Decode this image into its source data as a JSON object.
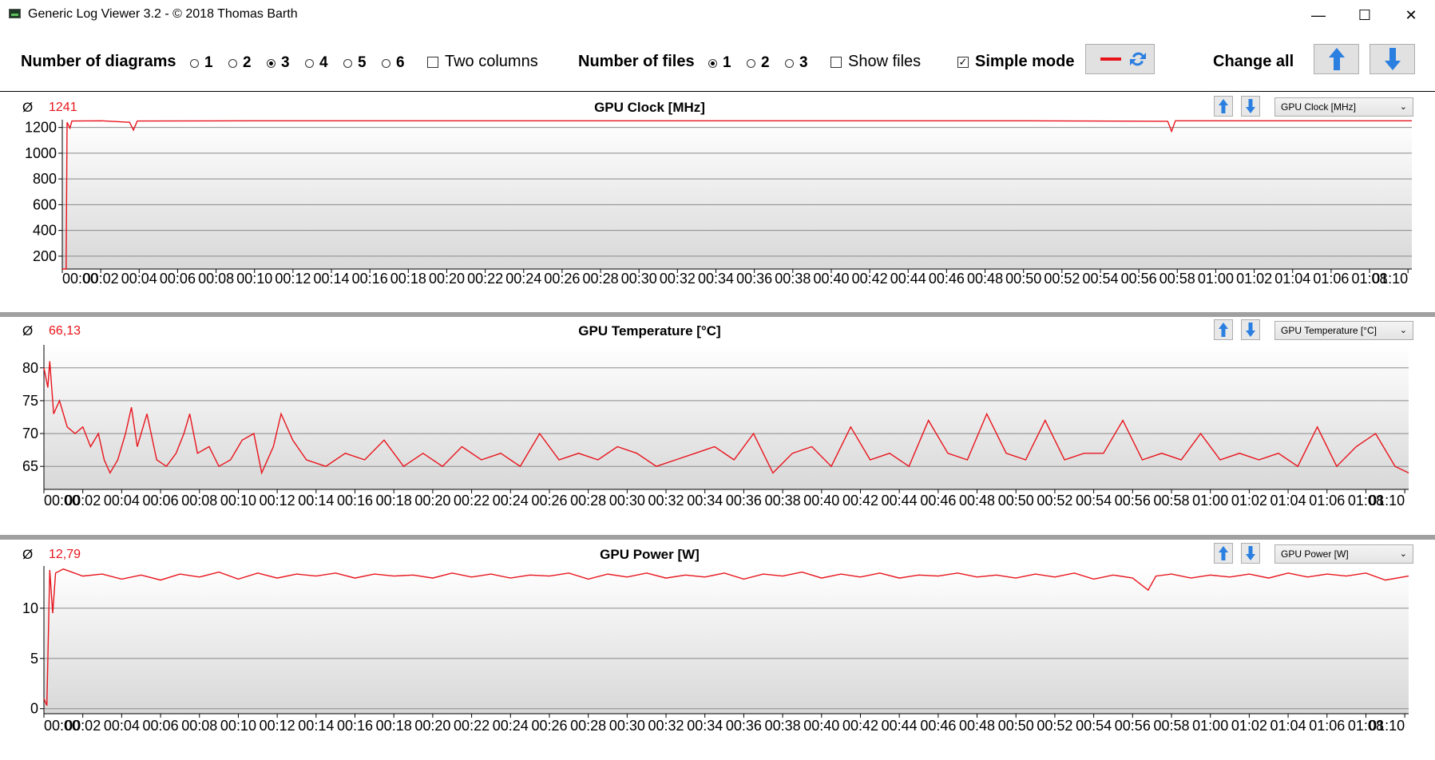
{
  "window": {
    "title": "Generic Log Viewer 3.2 - © 2018 Thomas Barth",
    "minimize": "—",
    "maximize": "☐",
    "close": "✕"
  },
  "toolbar": {
    "diagrams_label": "Number of diagrams",
    "diagram_options": [
      "1",
      "2",
      "3",
      "4",
      "5",
      "6"
    ],
    "diagrams_selected": "3",
    "two_columns_label": "Two columns",
    "two_columns_checked": false,
    "files_label": "Number of files",
    "file_options": [
      "1",
      "2",
      "3"
    ],
    "files_selected": "1",
    "show_files_label": "Show files",
    "show_files_checked": false,
    "simple_mode_label": "Simple mode",
    "simple_mode_checked": true,
    "change_all_label": "Change all"
  },
  "colors": {
    "series": "#e8141c",
    "accent_blue": "#2a7fe0"
  },
  "panels": [
    {
      "avg_symbol": "Ø",
      "avg_value": "1241",
      "title": "GPU Clock [MHz]",
      "dropdown": "GPU Clock [MHz]"
    },
    {
      "avg_symbol": "Ø",
      "avg_value": "66,13",
      "title": "GPU Temperature [°C]",
      "dropdown": "GPU Temperature [°C]"
    },
    {
      "avg_symbol": "Ø",
      "avg_value": "12,79",
      "title": "GPU Power [W]",
      "dropdown": "GPU Power [W]"
    }
  ],
  "chart_data": [
    {
      "type": "line",
      "title": "GPU Clock [MHz]",
      "x_ticks": [
        "00:00",
        "00:02",
        "00:04",
        "00:06",
        "00:08",
        "00:10",
        "00:12",
        "00:14",
        "00:16",
        "00:18",
        "00:20",
        "00:22",
        "00:24",
        "00:26",
        "00:28",
        "00:30",
        "00:32",
        "00:34",
        "00:36",
        "00:38",
        "00:40",
        "00:42",
        "00:44",
        "00:46",
        "00:48",
        "00:50",
        "00:52",
        "00:54",
        "00:56",
        "00:58",
        "01:00",
        "01:02",
        "01:04",
        "01:06",
        "01:08",
        "01:10"
      ],
      "y_ticks": [
        200,
        400,
        600,
        800,
        1000,
        1200
      ],
      "ylim": [
        100,
        1260
      ],
      "xlim_minutes": [
        0,
        70.2
      ],
      "grid": true,
      "series": [
        {
          "points": [
            [
              0,
              100
            ],
            [
              0.2,
              100
            ],
            [
              0.25,
              1240
            ],
            [
              0.4,
              1195
            ],
            [
              0.5,
              1250
            ],
            [
              2,
              1252
            ],
            [
              3.5,
              1240
            ],
            [
              3.7,
              1180
            ],
            [
              3.9,
              1250
            ],
            [
              10,
              1252
            ],
            [
              20,
              1252
            ],
            [
              30,
              1252
            ],
            [
              40,
              1252
            ],
            [
              50,
              1252
            ],
            [
              57.5,
              1248
            ],
            [
              57.7,
              1170
            ],
            [
              57.9,
              1252
            ],
            [
              70.2,
              1252
            ]
          ]
        }
      ]
    },
    {
      "type": "line",
      "title": "GPU Temperature [°C]",
      "x_ticks": [
        "00:00",
        "00:02",
        "00:04",
        "00:06",
        "00:08",
        "00:10",
        "00:12",
        "00:14",
        "00:16",
        "00:18",
        "00:20",
        "00:22",
        "00:24",
        "00:26",
        "00:28",
        "00:30",
        "00:32",
        "00:34",
        "00:36",
        "00:38",
        "00:40",
        "00:42",
        "00:44",
        "00:46",
        "00:48",
        "00:50",
        "00:52",
        "00:54",
        "00:56",
        "00:58",
        "01:00",
        "01:02",
        "01:04",
        "01:06",
        "01:08",
        "01:10"
      ],
      "y_ticks": [
        65,
        70,
        75,
        80
      ],
      "ylim": [
        61.5,
        83.5
      ],
      "xlim_minutes": [
        0,
        70.2
      ],
      "grid": true,
      "series": [
        {
          "points": [
            [
              0,
              80
            ],
            [
              0.2,
              77
            ],
            [
              0.3,
              81
            ],
            [
              0.5,
              73
            ],
            [
              0.8,
              75
            ],
            [
              1.2,
              71
            ],
            [
              1.6,
              70
            ],
            [
              2,
              71
            ],
            [
              2.4,
              68
            ],
            [
              2.8,
              70
            ],
            [
              3.1,
              66
            ],
            [
              3.4,
              64
            ],
            [
              3.8,
              66
            ],
            [
              4.2,
              70
            ],
            [
              4.5,
              74
            ],
            [
              4.8,
              68
            ],
            [
              5.3,
              73
            ],
            [
              5.8,
              66
            ],
            [
              6.3,
              65
            ],
            [
              6.8,
              67
            ],
            [
              7.2,
              70
            ],
            [
              7.5,
              73
            ],
            [
              7.9,
              67
            ],
            [
              8.5,
              68
            ],
            [
              9,
              65
            ],
            [
              9.6,
              66
            ],
            [
              10.2,
              69
            ],
            [
              10.8,
              70
            ],
            [
              11.2,
              64
            ],
            [
              11.8,
              68
            ],
            [
              12.2,
              73
            ],
            [
              12.8,
              69
            ],
            [
              13.5,
              66
            ],
            [
              14.5,
              65
            ],
            [
              15.5,
              67
            ],
            [
              16.5,
              66
            ],
            [
              17.5,
              69
            ],
            [
              18.5,
              65
            ],
            [
              19.5,
              67
            ],
            [
              20.5,
              65
            ],
            [
              21.5,
              68
            ],
            [
              22.5,
              66
            ],
            [
              23.5,
              67
            ],
            [
              24.5,
              65
            ],
            [
              25.5,
              70
            ],
            [
              26.5,
              66
            ],
            [
              27.5,
              67
            ],
            [
              28.5,
              66
            ],
            [
              29.5,
              68
            ],
            [
              30.5,
              67
            ],
            [
              31.5,
              65
            ],
            [
              32.5,
              66
            ],
            [
              33.5,
              67
            ],
            [
              34.5,
              68
            ],
            [
              35.5,
              66
            ],
            [
              36.5,
              70
            ],
            [
              37.5,
              64
            ],
            [
              38.5,
              67
            ],
            [
              39.5,
              68
            ],
            [
              40.5,
              65
            ],
            [
              41.5,
              71
            ],
            [
              42.5,
              66
            ],
            [
              43.5,
              67
            ],
            [
              44.5,
              65
            ],
            [
              45.5,
              72
            ],
            [
              46.5,
              67
            ],
            [
              47.5,
              66
            ],
            [
              48.5,
              73
            ],
            [
              49.5,
              67
            ],
            [
              50.5,
              66
            ],
            [
              51.5,
              72
            ],
            [
              52.5,
              66
            ],
            [
              53.5,
              67
            ],
            [
              54.5,
              67
            ],
            [
              55.5,
              72
            ],
            [
              56.5,
              66
            ],
            [
              57.5,
              67
            ],
            [
              58.5,
              66
            ],
            [
              59.5,
              70
            ],
            [
              60.5,
              66
            ],
            [
              61.5,
              67
            ],
            [
              62.5,
              66
            ],
            [
              63.5,
              67
            ],
            [
              64.5,
              65
            ],
            [
              65.5,
              71
            ],
            [
              66.5,
              65
            ],
            [
              67.5,
              68
            ],
            [
              68.5,
              70
            ],
            [
              69.5,
              65
            ],
            [
              70.2,
              64
            ]
          ]
        }
      ]
    },
    {
      "type": "line",
      "title": "GPU Power [W]",
      "x_ticks": [
        "00:00",
        "00:02",
        "00:04",
        "00:06",
        "00:08",
        "00:10",
        "00:12",
        "00:14",
        "00:16",
        "00:18",
        "00:20",
        "00:22",
        "00:24",
        "00:26",
        "00:28",
        "00:30",
        "00:32",
        "00:34",
        "00:36",
        "00:38",
        "00:40",
        "00:42",
        "00:44",
        "00:46",
        "00:48",
        "00:50",
        "00:52",
        "00:54",
        "00:56",
        "00:58",
        "01:00",
        "01:02",
        "01:04",
        "01:06",
        "01:08",
        "01:10"
      ],
      "y_ticks": [
        0,
        5,
        10
      ],
      "ylim": [
        -0.5,
        14.2
      ],
      "xlim_minutes": [
        0,
        70.2
      ],
      "grid": true,
      "series": [
        {
          "points": [
            [
              0,
              1
            ],
            [
              0.15,
              0.3
            ],
            [
              0.3,
              13.8
            ],
            [
              0.45,
              9.5
            ],
            [
              0.6,
              13.5
            ],
            [
              1,
              13.9
            ],
            [
              2,
              13.2
            ],
            [
              3,
              13.4
            ],
            [
              4,
              12.9
            ],
            [
              5,
              13.3
            ],
            [
              6,
              12.8
            ],
            [
              7,
              13.4
            ],
            [
              8,
              13.1
            ],
            [
              9,
              13.6
            ],
            [
              10,
              12.9
            ],
            [
              11,
              13.5
            ],
            [
              12,
              13.0
            ],
            [
              13,
              13.4
            ],
            [
              14,
              13.2
            ],
            [
              15,
              13.5
            ],
            [
              16,
              13.0
            ],
            [
              17,
              13.4
            ],
            [
              18,
              13.2
            ],
            [
              19,
              13.3
            ],
            [
              20,
              13.0
            ],
            [
              21,
              13.5
            ],
            [
              22,
              13.1
            ],
            [
              23,
              13.4
            ],
            [
              24,
              13.0
            ],
            [
              25,
              13.3
            ],
            [
              26,
              13.2
            ],
            [
              27,
              13.5
            ],
            [
              28,
              12.9
            ],
            [
              29,
              13.4
            ],
            [
              30,
              13.1
            ],
            [
              31,
              13.5
            ],
            [
              32,
              13.0
            ],
            [
              33,
              13.3
            ],
            [
              34,
              13.1
            ],
            [
              35,
              13.5
            ],
            [
              36,
              12.9
            ],
            [
              37,
              13.4
            ],
            [
              38,
              13.2
            ],
            [
              39,
              13.6
            ],
            [
              40,
              13.0
            ],
            [
              41,
              13.4
            ],
            [
              42,
              13.1
            ],
            [
              43,
              13.5
            ],
            [
              44,
              13.0
            ],
            [
              45,
              13.3
            ],
            [
              46,
              13.2
            ],
            [
              47,
              13.5
            ],
            [
              48,
              13.1
            ],
            [
              49,
              13.3
            ],
            [
              50,
              13.0
            ],
            [
              51,
              13.4
            ],
            [
              52,
              13.1
            ],
            [
              53,
              13.5
            ],
            [
              54,
              12.9
            ],
            [
              55,
              13.3
            ],
            [
              56,
              13.0
            ],
            [
              56.8,
              11.8
            ],
            [
              57.2,
              13.2
            ],
            [
              58,
              13.4
            ],
            [
              59,
              13.0
            ],
            [
              60,
              13.3
            ],
            [
              61,
              13.1
            ],
            [
              62,
              13.4
            ],
            [
              63,
              13.0
            ],
            [
              64,
              13.5
            ],
            [
              65,
              13.1
            ],
            [
              66,
              13.4
            ],
            [
              67,
              13.2
            ],
            [
              68,
              13.5
            ],
            [
              69,
              12.8
            ],
            [
              70.2,
              13.2
            ]
          ]
        }
      ]
    }
  ]
}
